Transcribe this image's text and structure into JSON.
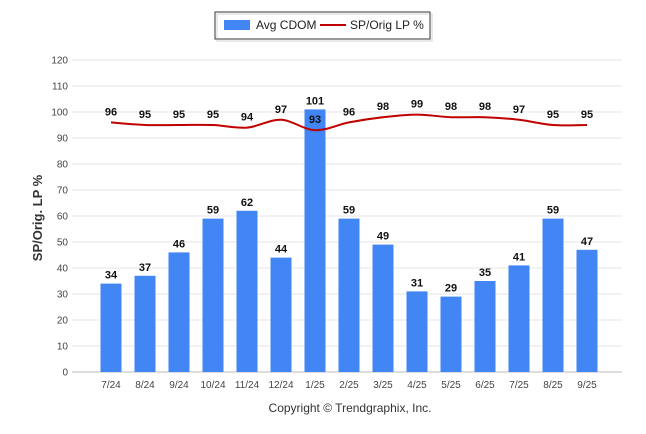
{
  "chart_data": {
    "type": "bar",
    "title": "",
    "xlabel": "",
    "ylabel": "SP/Orig. LP %",
    "ylim": [
      0,
      120
    ],
    "yticks": [
      0,
      10,
      20,
      30,
      40,
      50,
      60,
      70,
      80,
      90,
      100,
      110,
      120
    ],
    "grid": true,
    "legend_position": "top-center",
    "categories": [
      "7/24",
      "8/24",
      "9/24",
      "10/24",
      "11/24",
      "12/24",
      "1/25",
      "2/25",
      "3/25",
      "4/25",
      "5/25",
      "6/25",
      "7/25",
      "8/25",
      "9/25"
    ],
    "series": [
      {
        "name": "Avg CDOM",
        "type": "bar",
        "color": "#4285f4",
        "values": [
          34,
          37,
          46,
          59,
          62,
          44,
          101,
          59,
          49,
          31,
          29,
          35,
          41,
          59,
          47
        ]
      },
      {
        "name": "SP/Orig LP %",
        "type": "line",
        "color": "#c00000",
        "values": [
          96,
          95,
          95,
          95,
          94,
          97,
          93,
          96,
          98,
          99,
          98,
          98,
          97,
          95,
          95
        ]
      }
    ]
  },
  "footer": {
    "copyright": "Copyright © Trendgraphix, Inc."
  }
}
